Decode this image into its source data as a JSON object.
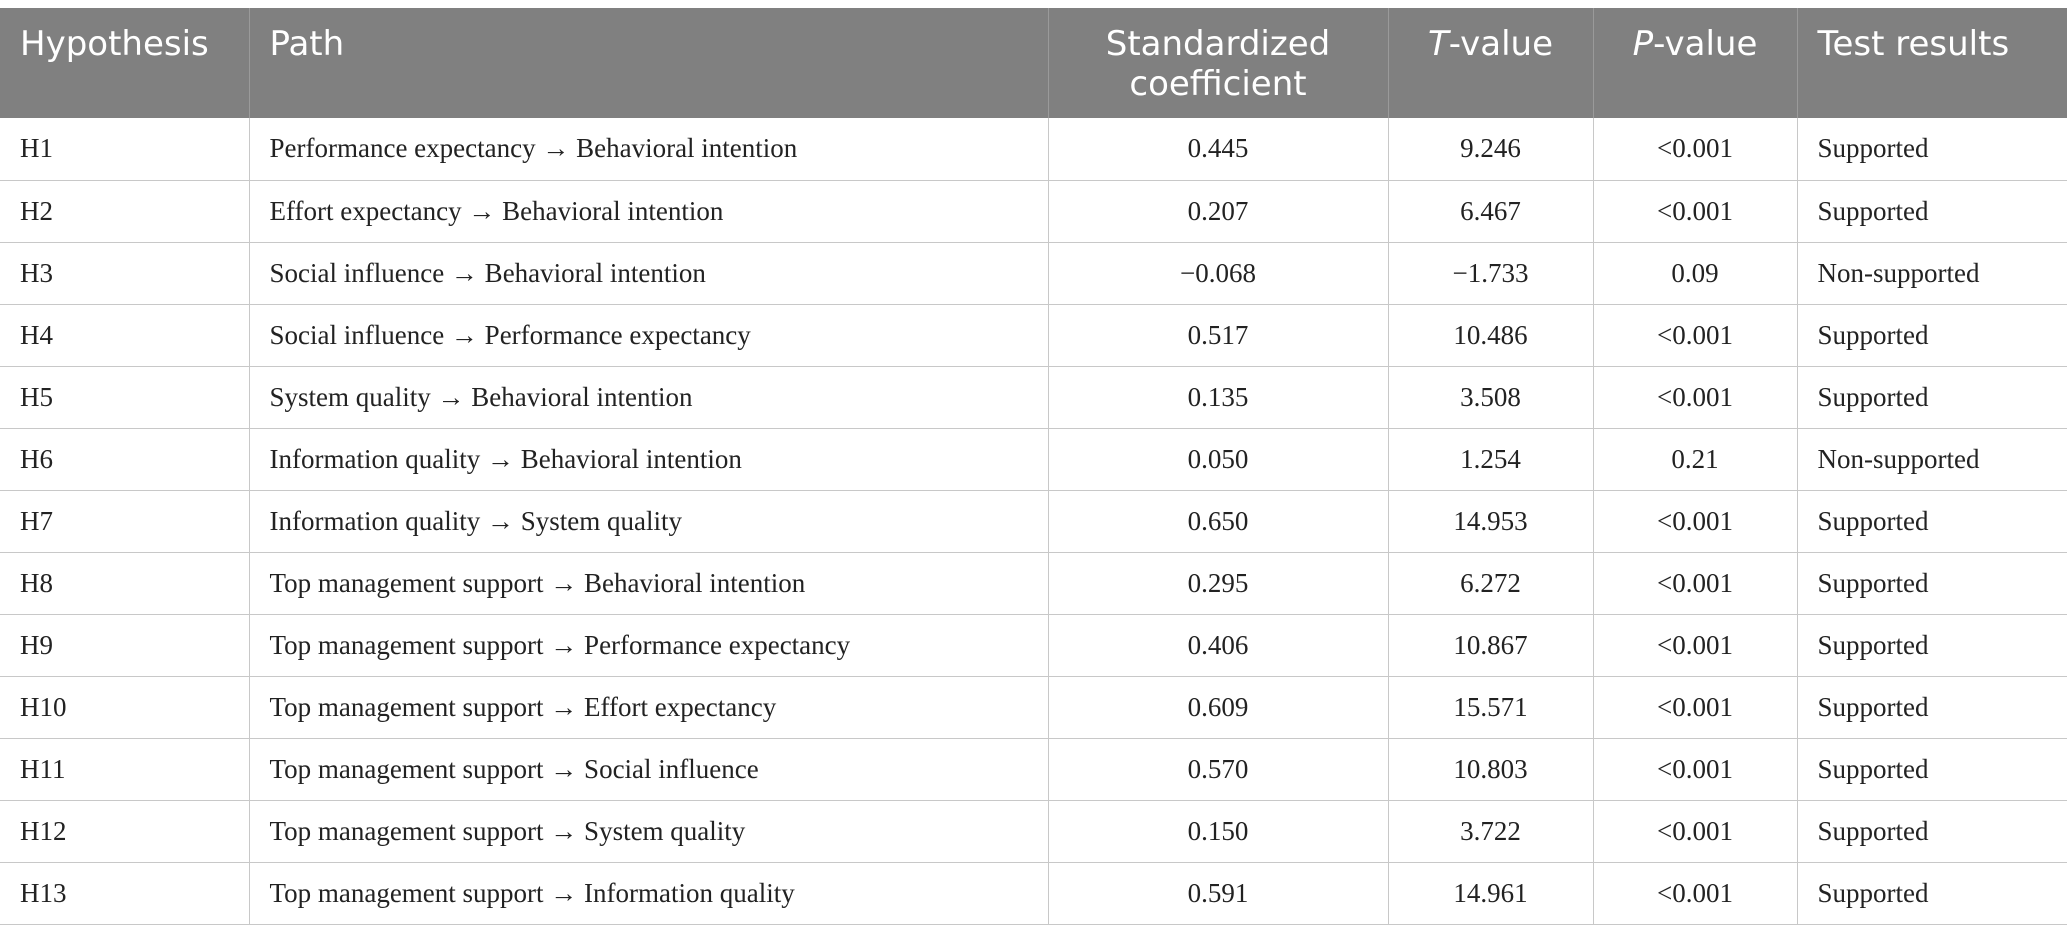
{
  "table": {
    "headers": {
      "hypothesis": "Hypothesis",
      "path": "Path",
      "coef": "Standardized coefficient",
      "t_italic": "T",
      "t_rest": "-value",
      "p_italic": "P",
      "p_rest": "-value",
      "result": "Test results"
    },
    "rows": [
      {
        "h": "H1",
        "path": "Performance expectancy → Behavioral intention",
        "coef": "0.445",
        "t": "9.246",
        "p": "<0.001",
        "result": "Supported"
      },
      {
        "h": "H2",
        "path": "Effort expectancy → Behavioral intention",
        "coef": "0.207",
        "t": "6.467",
        "p": "<0.001",
        "result": "Supported"
      },
      {
        "h": "H3",
        "path": "Social influence → Behavioral intention",
        "coef": "−0.068",
        "t": "−1.733",
        "p": "0.09",
        "result": "Non-supported"
      },
      {
        "h": "H4",
        "path": "Social influence → Performance expectancy",
        "coef": "0.517",
        "t": "10.486",
        "p": "<0.001",
        "result": "Supported"
      },
      {
        "h": "H5",
        "path": "System quality → Behavioral intention",
        "coef": "0.135",
        "t": "3.508",
        "p": "<0.001",
        "result": "Supported"
      },
      {
        "h": "H6",
        "path": "Information quality → Behavioral intention",
        "coef": "0.050",
        "t": "1.254",
        "p": "0.21",
        "result": "Non-supported"
      },
      {
        "h": "H7",
        "path": "Information quality → System quality",
        "coef": "0.650",
        "t": "14.953",
        "p": "<0.001",
        "result": "Supported"
      },
      {
        "h": "H8",
        "path": "Top management support → Behavioral intention",
        "coef": "0.295",
        "t": "6.272",
        "p": "<0.001",
        "result": "Supported"
      },
      {
        "h": "H9",
        "path": "Top management support → Performance expectancy",
        "coef": "0.406",
        "t": "10.867",
        "p": "<0.001",
        "result": "Supported"
      },
      {
        "h": "H10",
        "path": "Top management support → Effort expectancy",
        "coef": "0.609",
        "t": "15.571",
        "p": "<0.001",
        "result": "Supported"
      },
      {
        "h": "H11",
        "path": "Top management support → Social influence",
        "coef": "0.570",
        "t": "10.803",
        "p": "<0.001",
        "result": "Supported"
      },
      {
        "h": "H12",
        "path": "Top management support → System quality",
        "coef": "0.150",
        "t": "3.722",
        "p": "<0.001",
        "result": "Supported"
      },
      {
        "h": "H13",
        "path": "Top management support → Information quality",
        "coef": "0.591",
        "t": "14.961",
        "p": "<0.001",
        "result": "Supported"
      }
    ]
  },
  "colors": {
    "header_bg": "#808080",
    "header_text": "#ffffff",
    "grid": "#c8c8c8",
    "body_text": "#222222"
  }
}
